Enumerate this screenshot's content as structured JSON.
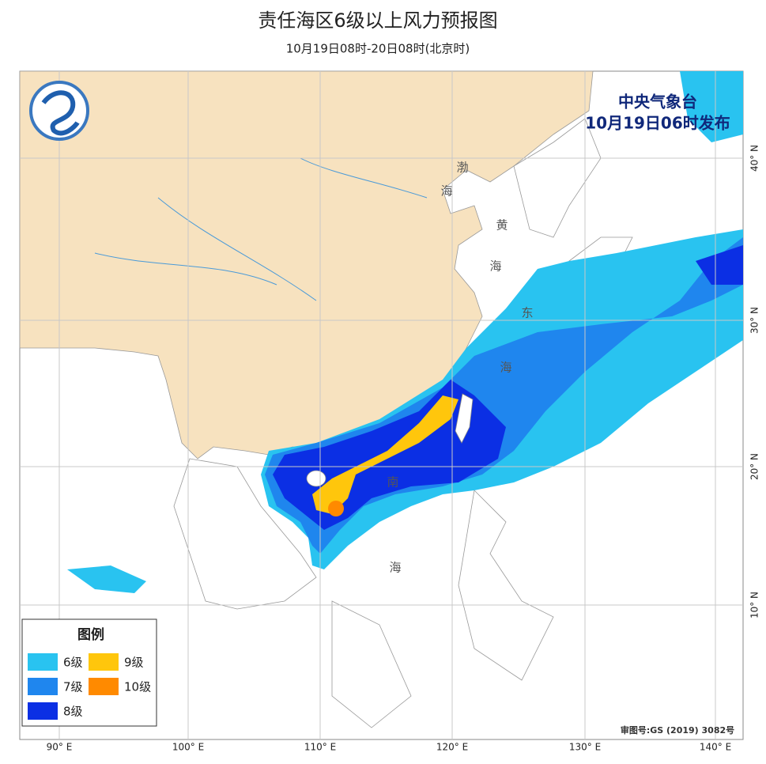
{
  "header": {
    "title": "责任海区6级以上风力预报图",
    "subtitle": "10月19日08时-20日08时(北京时)"
  },
  "issuer": {
    "agency": "中央气象台",
    "issued": "10月19日06时发布"
  },
  "legend": {
    "title": "图例",
    "items": [
      {
        "label": "6级",
        "color": "#29c3f0"
      },
      {
        "label": "7级",
        "color": "#1f86ee"
      },
      {
        "label": "8级",
        "color": "#0b2fe4"
      },
      {
        "label": "9级",
        "color": "#ffc60c"
      },
      {
        "label": "10级",
        "color": "#ff8a00"
      }
    ]
  },
  "sea_labels": [
    "渤",
    "海",
    "黄",
    "海",
    "东",
    "海",
    "南",
    "海"
  ],
  "longitude_labels": [
    "90° E",
    "100° E",
    "110° E",
    "120° E",
    "130° E",
    "140° E"
  ],
  "latitude_labels": [
    "40° N",
    "30° N",
    "20° N",
    "10° N"
  ],
  "approval": "审图号:GS (2019) 3082号"
}
